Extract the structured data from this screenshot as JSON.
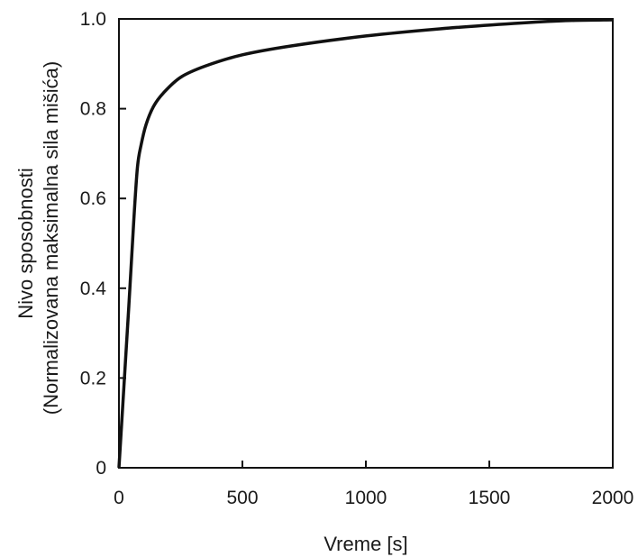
{
  "chart_data": {
    "type": "line",
    "title": "",
    "xlabel": "Vreme [s]",
    "ylabel_lines": [
      "Nivo sposobnosti",
      "(Normalizovana maksimalna sila mišića)"
    ],
    "xlim": [
      0,
      2000
    ],
    "ylim": [
      0,
      1.0
    ],
    "x_ticks": [
      0,
      500,
      1000,
      1500,
      2000
    ],
    "x_tick_labels": [
      "0",
      "500",
      "1000",
      "1500",
      "2000"
    ],
    "y_ticks": [
      0,
      0.2,
      0.4,
      0.6,
      0.8,
      1.0
    ],
    "y_tick_labels": [
      "0",
      "0.2",
      "0.4",
      "0.6",
      "0.8",
      "1.0"
    ],
    "grid": false,
    "legend": "none",
    "series": [
      {
        "color": "#111111",
        "x": [
          0,
          20,
          40,
          60,
          75,
          90,
          110,
          140,
          180,
          250,
          350,
          500,
          700,
          1000,
          1300,
          1600,
          1800,
          2000
        ],
        "y": [
          0,
          0.18,
          0.36,
          0.55,
          0.67,
          0.72,
          0.765,
          0.805,
          0.835,
          0.87,
          0.895,
          0.92,
          0.94,
          0.962,
          0.978,
          0.99,
          0.996,
          0.998
        ]
      }
    ]
  }
}
